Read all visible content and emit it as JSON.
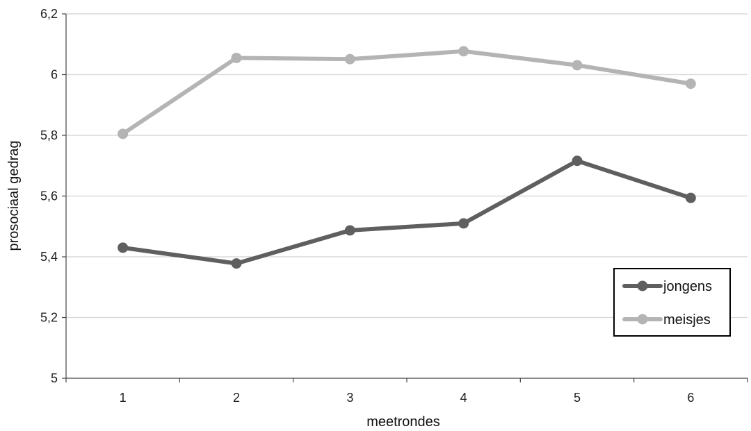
{
  "chart_data": {
    "type": "line",
    "title": "",
    "xlabel": "meetrondes",
    "ylabel": "prosociaal gedrag",
    "categories": [
      "1",
      "2",
      "3",
      "4",
      "5",
      "6"
    ],
    "ylim": [
      5,
      6.2
    ],
    "yticks": [
      "5",
      "5,2",
      "5,4",
      "5,6",
      "5,8",
      "6",
      "6,2"
    ],
    "grid": true,
    "legend_position": "bottom-right",
    "series": [
      {
        "name": "jongens",
        "color": "#5f5f5f",
        "values": [
          5.43,
          5.378,
          5.487,
          5.51,
          5.716,
          5.594
        ]
      },
      {
        "name": "meisjes",
        "color": "#b4b4b4",
        "values": [
          5.805,
          6.055,
          6.051,
          6.077,
          6.031,
          5.97
        ]
      }
    ]
  }
}
